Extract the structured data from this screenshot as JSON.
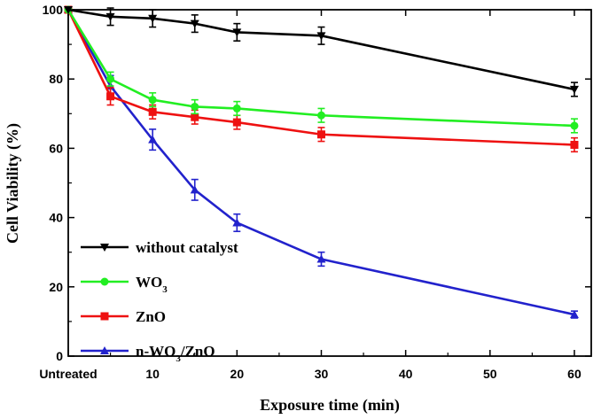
{
  "chart_data": {
    "type": "line",
    "title": "",
    "xlabel": "Exposure time (min)",
    "ylabel": "Cell Viability (%)",
    "xlim": [
      0,
      62
    ],
    "ylim": [
      0,
      100
    ],
    "x_ticks": [
      {
        "value": 0,
        "label": "Untreated"
      },
      {
        "value": 10,
        "label": "10"
      },
      {
        "value": 20,
        "label": "20"
      },
      {
        "value": 30,
        "label": "30"
      },
      {
        "value": 40,
        "label": "40"
      },
      {
        "value": 50,
        "label": "50"
      },
      {
        "value": 60,
        "label": "60"
      }
    ],
    "y_ticks": [
      0,
      20,
      40,
      60,
      80,
      100
    ],
    "legend_position": "bottom-left",
    "series": [
      {
        "name": "without catalyst",
        "name_main": "without catalyst",
        "name_sub": "",
        "name_tail": "",
        "color": "#000000",
        "marker": "triangle-down",
        "x": [
          0,
          5,
          10,
          15,
          20,
          30,
          60
        ],
        "y": [
          100,
          98,
          97.5,
          96,
          93.5,
          92.5,
          77
        ],
        "err": [
          0,
          2.5,
          2.5,
          2.5,
          2.5,
          2.5,
          2
        ]
      },
      {
        "name": "WO3",
        "name_main": "WO",
        "name_sub": "3",
        "name_tail": "",
        "color": "#22ee22",
        "marker": "circle",
        "x": [
          0,
          5,
          10,
          15,
          20,
          30,
          60
        ],
        "y": [
          100,
          80,
          74,
          72,
          71.5,
          69.5,
          66.5
        ],
        "err": [
          0,
          2,
          2,
          2,
          2,
          2,
          2
        ]
      },
      {
        "name": "ZnO",
        "name_main": "ZnO",
        "name_sub": "",
        "name_tail": "",
        "color": "#ee1111",
        "marker": "square",
        "x": [
          0,
          5,
          10,
          15,
          20,
          30,
          60
        ],
        "y": [
          100,
          75,
          70.5,
          69,
          67.5,
          64,
          61
        ],
        "err": [
          0,
          2.5,
          2,
          2,
          2,
          2,
          2
        ]
      },
      {
        "name": "n-WO3/ZnO",
        "name_main": "n-WO",
        "name_sub": "3",
        "name_tail": "/ZnO",
        "color": "#2222cc",
        "marker": "triangle-up",
        "x": [
          0,
          5,
          10,
          15,
          20,
          30,
          60
        ],
        "y": [
          100,
          78,
          62.5,
          48,
          38.5,
          28,
          12
        ],
        "err": [
          0,
          3,
          3,
          3,
          2.5,
          2,
          1
        ]
      }
    ]
  }
}
